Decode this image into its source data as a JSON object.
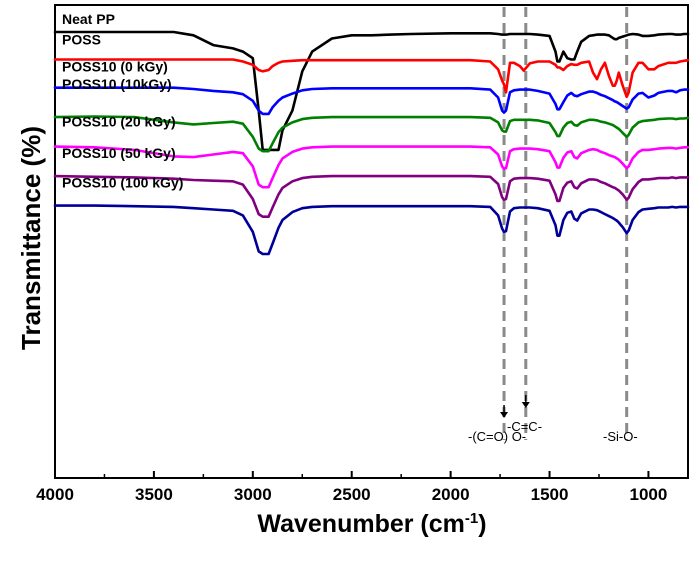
{
  "chart_data": {
    "type": "line",
    "title": "",
    "xlabel": "Wavenumber (cm",
    "xlabel_sup": "-1",
    "xlabel_end": ")",
    "ylabel": "Transmittance (%)",
    "xlim": [
      4000,
      800
    ],
    "x_reversed": true,
    "x_ticks": [
      4000,
      3500,
      3000,
      2500,
      2000,
      1500,
      1000
    ],
    "y_ticks_shown": false,
    "grid": false,
    "legend": "inline labels above each trace",
    "x": [
      4000,
      3800,
      3600,
      3400,
      3300,
      3200,
      3100,
      3050,
      3000,
      2970,
      2950,
      2920,
      2900,
      2870,
      2850,
      2800,
      2750,
      2700,
      2600,
      2500,
      2400,
      2300,
      2200,
      2000,
      1900,
      1800,
      1760,
      1740,
      1730,
      1720,
      1700,
      1680,
      1650,
      1630,
      1600,
      1560,
      1500,
      1470,
      1460,
      1450,
      1430,
      1410,
      1390,
      1375,
      1360,
      1340,
      1300,
      1280,
      1260,
      1240,
      1220,
      1200,
      1180,
      1170,
      1160,
      1150,
      1130,
      1110,
      1100,
      1080,
      1050,
      1030,
      1000,
      970,
      950,
      900,
      880,
      860,
      840,
      820,
      800
    ],
    "series": [
      {
        "name": "Neat PP",
        "color": "#000000",
        "offset": 0,
        "values": [
          0,
          0,
          0,
          0,
          -0.5,
          -2,
          -2.5,
          -3,
          -4,
          -12,
          -18,
          -18,
          -18,
          -18,
          -15,
          -12,
          -6,
          -3,
          -1,
          -0.5,
          -0.5,
          -0.4,
          -0.3,
          -0.2,
          -0.2,
          -0.2,
          -0.3,
          -0.4,
          -0.4,
          -0.4,
          -0.3,
          -0.3,
          -0.3,
          -0.3,
          -0.3,
          -0.4,
          -0.6,
          -3,
          -4.5,
          -4.5,
          -3,
          -4,
          -4.2,
          -4.2,
          -3,
          -1.5,
          -0.6,
          -0.5,
          -0.4,
          -0.4,
          -0.4,
          -0.5,
          -0.9,
          -1.1,
          -1.1,
          -0.9,
          -0.7,
          -0.5,
          -0.4,
          -0.3,
          -0.4,
          -0.6,
          -0.6,
          -0.5,
          -0.4,
          -0.3,
          -0.3,
          -0.4,
          -0.4,
          -0.3,
          -0.3
        ]
      },
      {
        "name": "POSS",
        "color": "#ff0000",
        "offset": 4.2,
        "values": [
          0,
          0,
          0,
          0,
          0,
          0,
          0,
          -0.3,
          -0.8,
          -1.6,
          -1.8,
          -1.6,
          -1,
          -0.5,
          -0.3,
          -0.2,
          -0.1,
          -0.1,
          -0.1,
          -0.1,
          -0.1,
          -0.1,
          -0.1,
          -0.1,
          -0.1,
          -0.3,
          -1.5,
          -3.2,
          -3.8,
          -5,
          -0.5,
          -0.5,
          -1,
          -1.7,
          -0.6,
          -0.3,
          -0.3,
          -0.8,
          -1.2,
          -1.2,
          -1.6,
          -1,
          -0.7,
          -0.8,
          -0.8,
          -0.5,
          -0.3,
          -2,
          -3,
          -1.5,
          -0.5,
          -2.5,
          -4,
          -4,
          -3.2,
          -2,
          -4,
          -5.7,
          -5,
          -2,
          -0.5,
          -0.5,
          -1.5,
          -1.5,
          -1,
          -0.5,
          -0.5,
          -0.5,
          -0.3,
          -0.2,
          -0.1
        ]
      },
      {
        "name": "POSS10 (0 kGy)",
        "color": "#0000ff",
        "offset": 8.5,
        "values": [
          0,
          0,
          0,
          0,
          -0.2,
          -0.5,
          -0.7,
          -1,
          -2,
          -3.5,
          -4,
          -4,
          -3,
          -2,
          -1.5,
          -0.9,
          -0.4,
          -0.2,
          -0.1,
          -0.1,
          -0.1,
          -0.1,
          -0.1,
          -0.1,
          -0.1,
          -0.3,
          -1.5,
          -3.5,
          -3.8,
          -3.5,
          -0.7,
          -0.4,
          -0.3,
          -0.3,
          -0.3,
          -0.5,
          -0.9,
          -2.5,
          -3.3,
          -3.3,
          -2.2,
          -1.2,
          -0.8,
          -1.2,
          -1.3,
          -1,
          -0.6,
          -0.6,
          -0.8,
          -1.1,
          -1.3,
          -1.6,
          -1.9,
          -2.1,
          -2.2,
          -2.4,
          -2.8,
          -3.2,
          -3,
          -1.8,
          -0.9,
          -0.8,
          -1.5,
          -1.2,
          -0.8,
          -0.5,
          -0.5,
          -0.7,
          -0.4,
          -0.3,
          -0.3
        ]
      },
      {
        "name": "POSS10 (10kGy)",
        "color": "#008000",
        "offset": 13,
        "values": [
          0,
          0.1,
          0,
          -0.8,
          -1.1,
          -0.9,
          -0.7,
          -1,
          -3,
          -4.8,
          -5.2,
          -5.2,
          -4,
          -2.3,
          -1.6,
          -0.8,
          -0.3,
          -0.1,
          0,
          0,
          0,
          0,
          0,
          0,
          0,
          -0.1,
          -0.8,
          -2,
          -2.2,
          -2.2,
          -0.6,
          -0.4,
          -0.4,
          -0.4,
          -0.4,
          -0.5,
          -0.9,
          -2.3,
          -2.9,
          -2.9,
          -1.6,
          -0.9,
          -0.7,
          -1.2,
          -1.3,
          -0.8,
          -0.4,
          -0.4,
          -0.5,
          -0.7,
          -0.8,
          -1,
          -1.2,
          -1.4,
          -1.6,
          -1.8,
          -2.4,
          -3,
          -2.7,
          -1.6,
          -0.8,
          -0.6,
          -0.5,
          -0.4,
          -0.3,
          -0.2,
          -0.2,
          -0.3,
          -0.2,
          -0.2,
          -0.1
        ]
      },
      {
        "name": "POSS10 (20 kGy)",
        "color": "#ff00ff",
        "offset": 17.5,
        "values": [
          0,
          -0.1,
          -0.5,
          -1.5,
          -1.6,
          -1.2,
          -0.8,
          -1,
          -3,
          -5.8,
          -6.2,
          -6.2,
          -4.8,
          -2.8,
          -1.8,
          -0.8,
          -0.3,
          -0.1,
          0,
          0,
          0,
          0,
          0,
          0,
          0,
          -0.1,
          -1.2,
          -3,
          -3.4,
          -3.3,
          -0.7,
          -0.4,
          -0.3,
          -0.3,
          -0.3,
          -0.4,
          -0.7,
          -2.4,
          -3.2,
          -3.2,
          -1.7,
          -0.9,
          -0.7,
          -1.6,
          -1.8,
          -1,
          -0.5,
          -0.4,
          -0.5,
          -0.8,
          -1,
          -1.3,
          -1.5,
          -1.6,
          -1.8,
          -2,
          -2.6,
          -3.3,
          -3,
          -1.8,
          -0.8,
          -0.5,
          -0.5,
          -0.4,
          -0.3,
          -0.2,
          -0.2,
          -0.3,
          -0.2,
          -0.1,
          -0.1
        ]
      },
      {
        "name": "POSS10 (50 kGy)",
        "color": "#800080",
        "offset": 22,
        "values": [
          0,
          -0.1,
          -0.2,
          -0.4,
          -0.6,
          -0.7,
          -0.8,
          -1.3,
          -3.5,
          -5.8,
          -6.2,
          -6.2,
          -4.8,
          -2.8,
          -1.8,
          -0.8,
          -0.3,
          -0.1,
          0,
          0,
          0,
          0,
          0,
          0,
          0,
          -0.1,
          -1.2,
          -3.2,
          -3.6,
          -3.5,
          -0.8,
          -0.4,
          -0.3,
          -0.3,
          -0.3,
          -0.4,
          -0.7,
          -2.8,
          -3.8,
          -3.8,
          -1.8,
          -1,
          -0.8,
          -1.7,
          -1.9,
          -1.1,
          -0.5,
          -0.5,
          -0.6,
          -0.9,
          -1.1,
          -1.4,
          -1.7,
          -1.8,
          -2,
          -2.2,
          -2.8,
          -3.6,
          -3.3,
          -2,
          -0.9,
          -0.5,
          -0.5,
          -0.4,
          -0.3,
          -0.3,
          -0.2,
          -0.3,
          -0.2,
          -0.2,
          -0.2
        ]
      },
      {
        "name": "POSS10 (100 kGy)",
        "color": "#000099",
        "offset": 26.5,
        "values": [
          0,
          0,
          -0.1,
          -0.2,
          -0.4,
          -0.6,
          -0.8,
          -1.5,
          -4,
          -7,
          -7.4,
          -7.4,
          -5.8,
          -3.4,
          -2.2,
          -1,
          -0.4,
          -0.2,
          -0.1,
          -0.1,
          -0.1,
          -0.1,
          -0.1,
          -0.1,
          -0.1,
          -0.2,
          -1.5,
          -3.5,
          -4,
          -3.9,
          -0.9,
          -0.4,
          -0.3,
          -0.3,
          -0.3,
          -0.4,
          -0.8,
          -3,
          -4.6,
          -4.6,
          -2.2,
          -1.1,
          -0.9,
          -2,
          -2.3,
          -1.2,
          -0.6,
          -0.6,
          -0.7,
          -1,
          -1.3,
          -1.6,
          -1.9,
          -2.1,
          -2.3,
          -2.6,
          -3.3,
          -4.2,
          -3.8,
          -2.2,
          -1,
          -0.6,
          -0.5,
          -0.4,
          -0.3,
          -0.3,
          -0.2,
          -0.3,
          -0.2,
          -0.2,
          -0.2
        ]
      }
    ],
    "reference_lines": [
      1730,
      1620,
      1110
    ],
    "annotations": [
      {
        "text": "-(C=O) O-",
        "x": 1730
      },
      {
        "text": "-C=C-",
        "x": 1620
      },
      {
        "text": "-Si-O-",
        "x": 1110
      }
    ]
  }
}
